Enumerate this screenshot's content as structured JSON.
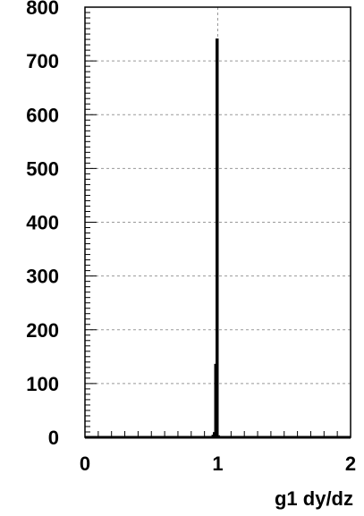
{
  "chart_data": {
    "type": "histogram",
    "title": "",
    "xlabel": "g1  dy/dz",
    "ylabel": "",
    "xlim": [
      0,
      2
    ],
    "ylim": [
      0,
      800
    ],
    "grid": true,
    "x_ticks": [
      0,
      1,
      2
    ],
    "y_ticks": [
      0,
      100,
      200,
      300,
      400,
      500,
      600,
      700,
      800
    ],
    "bins": [
      {
        "x0": 0.96,
        "x1": 0.97,
        "value": 3
      },
      {
        "x0": 0.97,
        "x1": 0.98,
        "value": 8
      },
      {
        "x0": 0.98,
        "x1": 0.99,
        "value": 135
      },
      {
        "x0": 0.99,
        "x1": 1.0,
        "value": 740
      },
      {
        "x0": 1.0,
        "x1": 1.01,
        "value": 2
      }
    ],
    "colors": {
      "line": "#000000",
      "grid": "#999999",
      "background": "#ffffff"
    }
  }
}
